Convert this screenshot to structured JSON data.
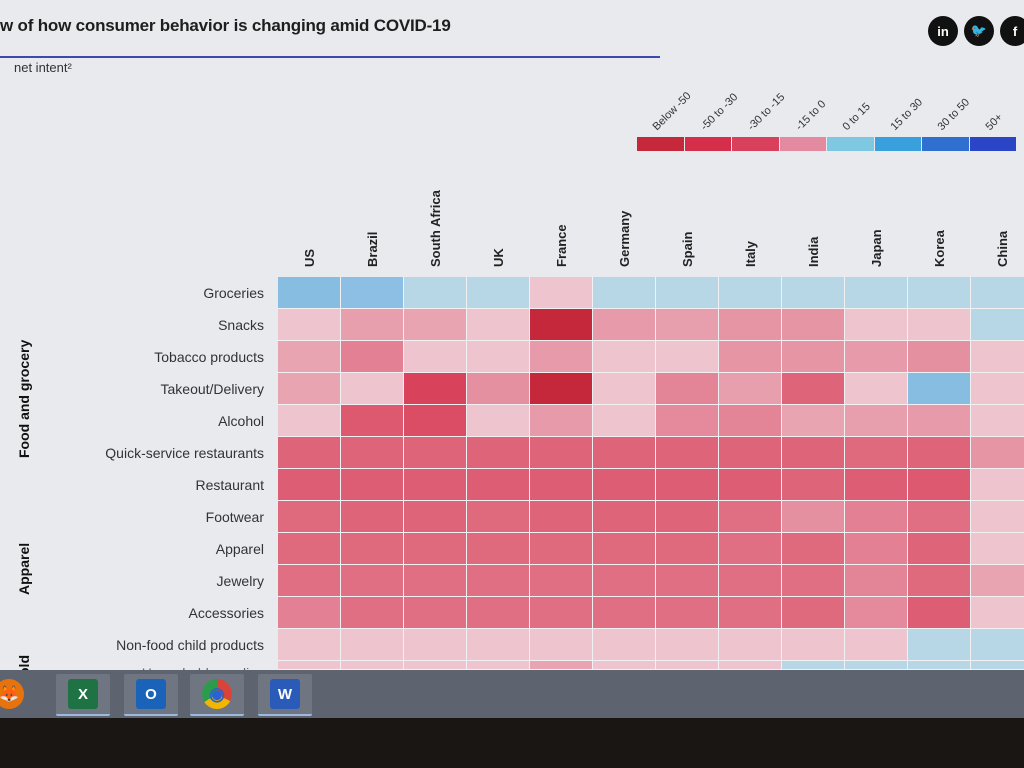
{
  "header": {
    "title": "w of how consumer behavior is changing amid COVID-19",
    "subtitle": "net intent²",
    "social": [
      {
        "name": "linkedin-icon",
        "glyph": "in"
      },
      {
        "name": "twitter-icon",
        "glyph": "🐦"
      },
      {
        "name": "facebook-icon",
        "glyph": "f"
      }
    ]
  },
  "legend": {
    "labels": [
      "Below -50",
      "-50 to -30",
      "-30 to -15",
      "-15 to 0",
      "0 to 15",
      "15 to 30",
      "30 to 50",
      "50+"
    ],
    "colors": [
      "#c5283a",
      "#d52e4a",
      "#d9405c",
      "#e48aa0",
      "#7ec8e2",
      "#3aa0dd",
      "#2f6fd0",
      "#2a45c6"
    ]
  },
  "chart_data": {
    "type": "heatmap",
    "title": "w of how consumer behavior is changing amid COVID-19",
    "metric": "net intent²",
    "columns": [
      "US",
      "Brazil",
      "South Africa",
      "UK",
      "France",
      "Germany",
      "Spain",
      "Italy",
      "India",
      "Japan",
      "Korea",
      "China"
    ],
    "groups": [
      {
        "label": "Food and grocery",
        "rows": [
          "Groceries",
          "Snacks",
          "Tobacco products",
          "Takeout/Delivery",
          "Alcohol",
          "Quick-service restaurants",
          "Restaurant"
        ]
      },
      {
        "label": "Apparel",
        "rows": [
          "Footwear",
          "Apparel",
          "Jewelry",
          "Accessories"
        ]
      },
      {
        "label": "old",
        "rows": [
          "Non-food child products",
          "Household supplies"
        ]
      }
    ],
    "rows": [
      "Groceries",
      "Snacks",
      "Tobacco products",
      "Takeout/Delivery",
      "Alcohol",
      "Quick-service restaurants",
      "Restaurant",
      "Footwear",
      "Apparel",
      "Jewelry",
      "Accessories",
      "Non-food child products",
      "Household supplies"
    ],
    "value_bins": [
      "Below -50",
      "-50 to -30",
      "-30 to -15",
      "-15 to 0",
      "0 to 15",
      "15 to 30",
      "30 to 50",
      "50+"
    ],
    "values": [
      [
        22,
        20,
        8,
        10,
        -8,
        12,
        8,
        6,
        6,
        8,
        10,
        10
      ],
      [
        -12,
        -18,
        -16,
        -10,
        -55,
        -20,
        -18,
        -22,
        -22,
        -14,
        -14,
        12
      ],
      [
        -16,
        -30,
        -14,
        -14,
        -20,
        -6,
        -8,
        -22,
        -22,
        -20,
        -24,
        -12
      ],
      [
        -16,
        -12,
        -48,
        -24,
        -55,
        -4,
        -28,
        -18,
        -36,
        -8,
        22,
        -14
      ],
      [
        -12,
        -40,
        -44,
        -14,
        -20,
        -14,
        -26,
        -28,
        -16,
        -18,
        -20,
        -12
      ],
      [
        -36,
        -36,
        -36,
        -36,
        -36,
        -36,
        -36,
        -36,
        -36,
        -34,
        -36,
        -22
      ],
      [
        -38,
        -38,
        -38,
        -38,
        -38,
        -38,
        -38,
        -38,
        -36,
        -38,
        -40,
        -10
      ],
      [
        -34,
        -36,
        -36,
        -34,
        -36,
        -36,
        -36,
        -32,
        -24,
        -30,
        -32,
        -6
      ],
      [
        -34,
        -34,
        -34,
        -34,
        -34,
        -34,
        -34,
        -32,
        -34,
        -30,
        -36,
        -8
      ],
      [
        -32,
        -32,
        -32,
        -32,
        -32,
        -32,
        -32,
        -32,
        -32,
        -28,
        -34,
        -16
      ],
      [
        -30,
        -32,
        -32,
        -32,
        -32,
        -32,
        -32,
        -32,
        -34,
        -26,
        -38,
        -8
      ],
      [
        -2,
        -2,
        -4,
        -10,
        -10,
        -8,
        -8,
        -10,
        -4,
        -2,
        6,
        6
      ],
      [
        -2,
        -2,
        -2,
        -4,
        -16,
        -2,
        -2,
        -2,
        8,
        0,
        4,
        6
      ]
    ]
  },
  "taskbar": {
    "apps": [
      {
        "name": "firefox-icon",
        "glyph": "🦊",
        "color": "#e8720c",
        "active": false
      },
      {
        "name": "excel-icon",
        "glyph": "X",
        "color": "#1f7244",
        "active": true
      },
      {
        "name": "outlook-icon",
        "glyph": "O",
        "color": "#1a63b8",
        "active": true
      },
      {
        "name": "chrome-icon",
        "glyph": "◉",
        "color": "#d9443a",
        "active": true
      },
      {
        "name": "word-icon",
        "glyph": "W",
        "color": "#2b5bb8",
        "active": true
      }
    ]
  }
}
